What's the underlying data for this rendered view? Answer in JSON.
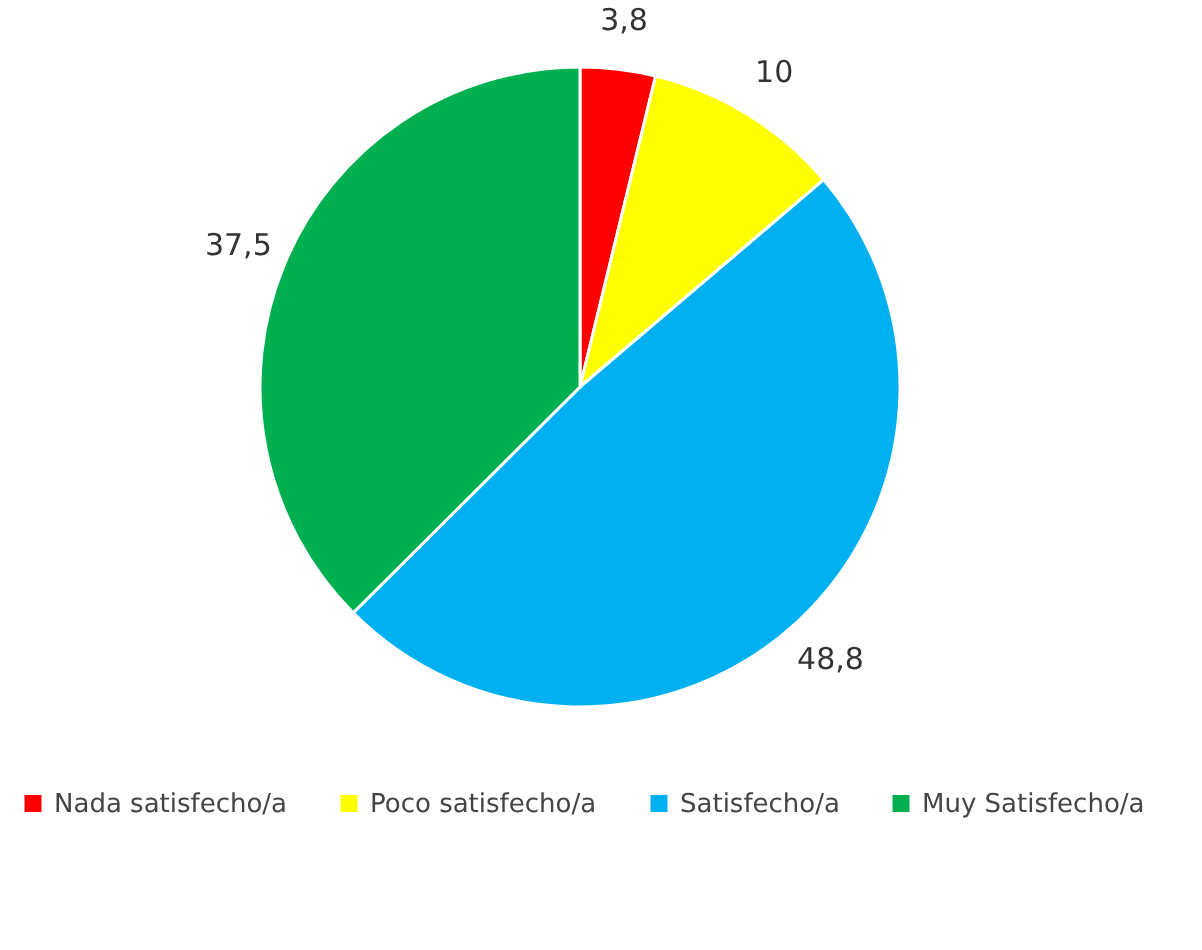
{
  "chart_data": {
    "type": "pie",
    "categories": [
      "Nada satisfecho/a",
      "Poco satisfecho/a",
      "Satisfecho/a",
      "Muy Satisfecho/a"
    ],
    "values": [
      3.8,
      10,
      48.8,
      37.5
    ],
    "colors": [
      "#ff0000",
      "#ffff00",
      "#00b0f0",
      "#00b050"
    ],
    "value_labels": [
      "3,8",
      "10",
      "48,8",
      "37,5"
    ],
    "legend": "bottom"
  }
}
